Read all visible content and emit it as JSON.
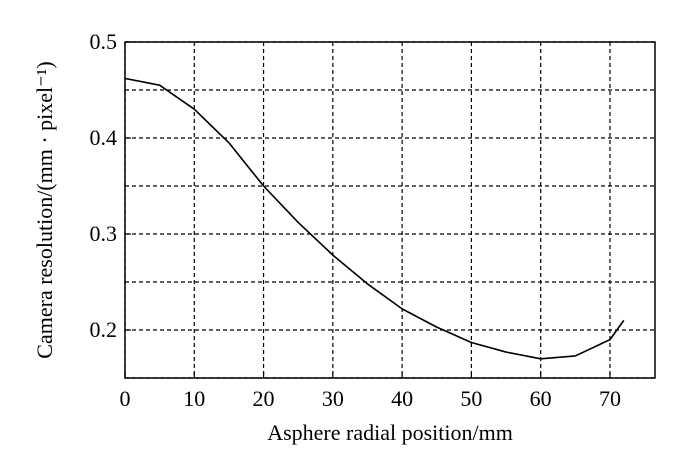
{
  "chart_data": {
    "type": "line",
    "x_label": "Asphere radial position/mm",
    "y_label": "Camera resolution/(mm · pixel⁻¹)",
    "x": [
      0,
      5,
      10,
      15,
      20,
      25,
      30,
      35,
      40,
      45,
      50,
      55,
      60,
      65,
      70,
      72
    ],
    "series": [
      {
        "color": "#000000",
        "values": [
          0.462,
          0.455,
          0.43,
          0.395,
          0.35,
          0.312,
          0.278,
          0.248,
          0.222,
          0.203,
          0.187,
          0.177,
          0.17,
          0.173,
          0.19,
          0.21
        ]
      }
    ],
    "xlim": [
      0,
      76.5
    ],
    "xticks": [
      0,
      10,
      20,
      30,
      40,
      50,
      60,
      70
    ],
    "ylim": [
      0.15,
      0.5
    ],
    "yticks": [
      0.2,
      0.3,
      0.4,
      0.5
    ],
    "grid": true
  }
}
